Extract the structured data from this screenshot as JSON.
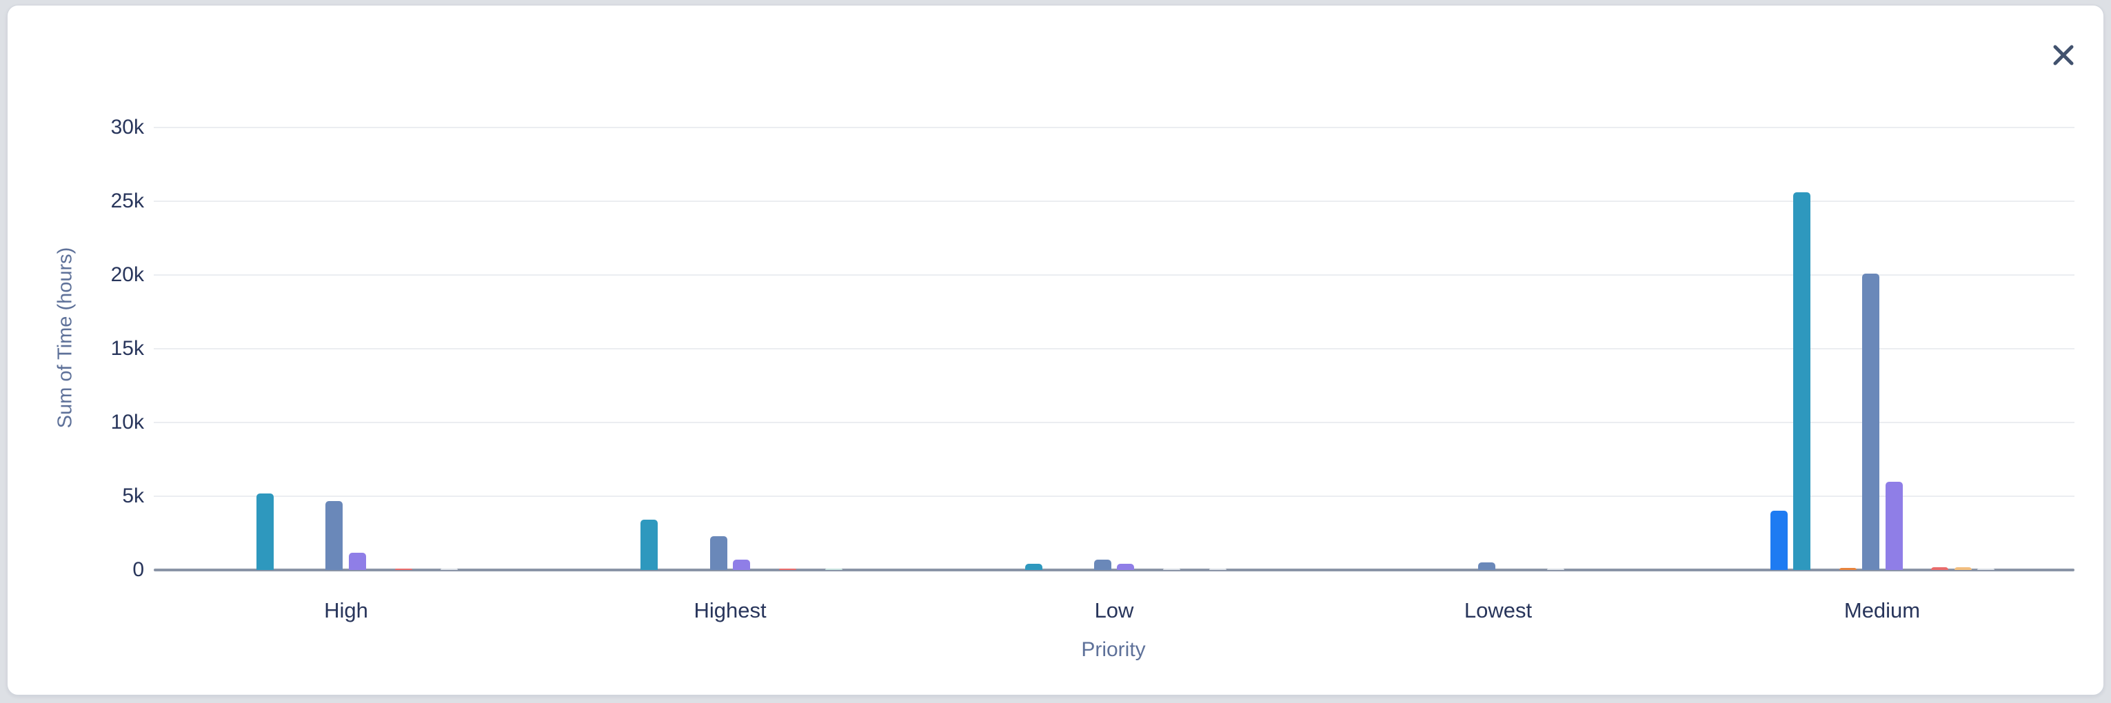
{
  "dialog": {
    "close_glyph": "close"
  },
  "colors": {
    "page_bg": "#dde0e5",
    "card_bg": "#ffffff",
    "gridline": "#ebedf1",
    "axis_line": "#8a94a6",
    "tick_text": "#28355b",
    "category_text": "#28355b",
    "axis_title_text": "#5e7199",
    "close_icon": "#42526e"
  },
  "chart_data": {
    "type": "bar",
    "title": "",
    "xlabel": "Priority",
    "ylabel": "Sum of Time (hours)",
    "grid": true,
    "legend": "none",
    "ylim": [
      0,
      32000
    ],
    "y_ticks": [
      {
        "label": "0",
        "value": 0
      },
      {
        "label": "5k",
        "value": 5000
      },
      {
        "label": "10k",
        "value": 10000
      },
      {
        "label": "15k",
        "value": 15000
      },
      {
        "label": "20k",
        "value": 20000
      },
      {
        "label": "25k",
        "value": 25000
      },
      {
        "label": "30k",
        "value": 30000
      }
    ],
    "categories": [
      "High",
      "Highest",
      "Low",
      "Lowest",
      "Medium"
    ],
    "slot_count": 10,
    "palette": {
      "blue": "#1e7bf2",
      "teal": "#2e98be",
      "orange": "#e8833c",
      "slate": "#6a88b9",
      "purple": "#8f7ee7",
      "red": "#e96b6b",
      "peach": "#f2be7e",
      "palegray": "#dce1e8",
      "paleteal": "#c9e4e0"
    },
    "groups": [
      {
        "label": "High",
        "bars": [
          {
            "slot": 1,
            "color": "teal",
            "hours": 5200
          },
          {
            "slot": 4,
            "color": "slate",
            "hours": 4650
          },
          {
            "slot": 5,
            "color": "purple",
            "hours": 1150
          },
          {
            "slot": 7,
            "color": "red",
            "hours": 80
          },
          {
            "slot": 9,
            "color": "palegray",
            "hours": 60
          }
        ]
      },
      {
        "label": "Highest",
        "bars": [
          {
            "slot": 1,
            "color": "teal",
            "hours": 3400
          },
          {
            "slot": 4,
            "color": "slate",
            "hours": 2300
          },
          {
            "slot": 5,
            "color": "purple",
            "hours": 700
          },
          {
            "slot": 7,
            "color": "red",
            "hours": 70
          },
          {
            "slot": 9,
            "color": "paleteal",
            "hours": 90
          }
        ]
      },
      {
        "label": "Low",
        "bars": [
          {
            "slot": 1,
            "color": "teal",
            "hours": 420
          },
          {
            "slot": 4,
            "color": "slate",
            "hours": 700
          },
          {
            "slot": 5,
            "color": "purple",
            "hours": 420
          },
          {
            "slot": 7,
            "color": "palegray",
            "hours": 60
          },
          {
            "slot": 9,
            "color": "palegray",
            "hours": 50
          }
        ]
      },
      {
        "label": "Lowest",
        "bars": [
          {
            "slot": 4,
            "color": "slate",
            "hours": 500
          },
          {
            "slot": 7,
            "color": "palegray",
            "hours": 50
          }
        ]
      },
      {
        "label": "Medium",
        "bars": [
          {
            "slot": 0,
            "color": "blue",
            "hours": 4000
          },
          {
            "slot": 1,
            "color": "teal",
            "hours": 25600
          },
          {
            "slot": 3,
            "color": "orange",
            "hours": 150
          },
          {
            "slot": 4,
            "color": "slate",
            "hours": 20100
          },
          {
            "slot": 5,
            "color": "purple",
            "hours": 6000
          },
          {
            "slot": 7,
            "color": "red",
            "hours": 200
          },
          {
            "slot": 8,
            "color": "peach",
            "hours": 180
          },
          {
            "slot": 9,
            "color": "palegray",
            "hours": 100
          }
        ]
      }
    ]
  }
}
